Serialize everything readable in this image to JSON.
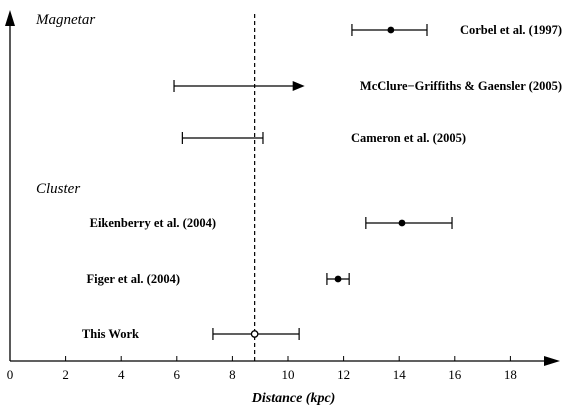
{
  "chart_data": {
    "type": "scatter",
    "xlabel": "Distance (kpc)",
    "xlim": [
      0,
      20
    ],
    "xticks": [
      0,
      2,
      4,
      6,
      8,
      10,
      12,
      14,
      16,
      18
    ],
    "reference_line_x": 8.8,
    "groups": [
      "Magnetar",
      "Cluster"
    ],
    "measurements": [
      {
        "label": "Corbel et al. (1997)",
        "group": "Magnetar",
        "value": 13.7,
        "low": 12.3,
        "high": 15.0,
        "marker": "filled-circle",
        "lower_limit": false
      },
      {
        "label": "McClure−Griffiths & Gaensler (2005)",
        "group": "Magnetar",
        "value": null,
        "low": 5.9,
        "high": 10.6,
        "marker": "none",
        "lower_limit": true
      },
      {
        "label": "Cameron et al. (2005)",
        "group": "Magnetar",
        "value": null,
        "low": 6.2,
        "high": 9.1,
        "marker": "none",
        "lower_limit": false
      },
      {
        "label": "Eikenberry et al. (2004)",
        "group": "Cluster",
        "value": 14.1,
        "low": 12.8,
        "high": 15.9,
        "marker": "filled-circle",
        "lower_limit": false
      },
      {
        "label": "Figer et al. (2004)",
        "group": "Cluster",
        "value": 11.8,
        "low": 11.4,
        "high": 12.2,
        "marker": "filled-circle",
        "lower_limit": false
      },
      {
        "label": "This Work",
        "group": "Cluster",
        "value": 8.8,
        "low": 7.3,
        "high": 10.4,
        "marker": "open-circle",
        "lower_limit": false
      }
    ]
  }
}
